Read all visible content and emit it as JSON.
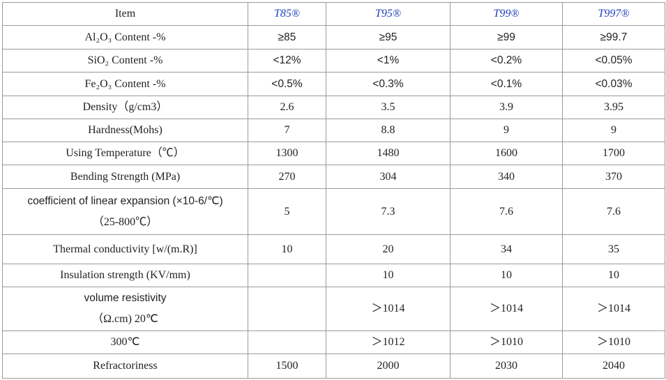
{
  "table": {
    "header": [
      "Item",
      "T85®",
      "T95®",
      "T99®",
      "T997®"
    ],
    "rows": [
      [
        "Al₂O₃ Content -%",
        "≥85",
        "≥95",
        "≥99",
        "≥99.7"
      ],
      [
        "SiO₂ Content -%",
        "<12%",
        "<1%",
        "<0.2%",
        "<0.05%"
      ],
      [
        "Fe₂O₃ Content -%",
        "<0.5%",
        "<0.3%",
        "<0.1%",
        "<0.03%"
      ],
      [
        "Density（g/cm3）",
        "2.6",
        "3.5",
        "3.9",
        "3.95"
      ],
      [
        "Hardness(Mohs)",
        "7",
        "8.8",
        "9",
        "9"
      ],
      [
        "Using Temperature（℃）",
        "1300",
        "1480",
        "1600",
        "1700"
      ],
      [
        "Bending Strength (MPa)",
        "270",
        "304",
        "340",
        "370"
      ],
      [
        [
          "coefficient of linear expansion (×10-6/℃)",
          "（25-800℃）"
        ],
        "5",
        "7.3",
        "7.6",
        "7.6"
      ],
      [
        "Thermal conductivity [w/(m.R)]",
        "10",
        "20",
        "34",
        "35"
      ],
      [
        "Insulation strength (KV/mm)",
        null,
        "10",
        "10",
        "10"
      ],
      [
        [
          "volume resistivity",
          "（Ω.cm) 20℃"
        ],
        null,
        "＞1014",
        "＞1014",
        "＞1014"
      ],
      [
        "300℃",
        null,
        "＞1012",
        "＞1010",
        "＞1010"
      ],
      [
        "Refractoriness",
        "1500",
        "2000",
        "2030",
        "2040"
      ]
    ]
  }
}
